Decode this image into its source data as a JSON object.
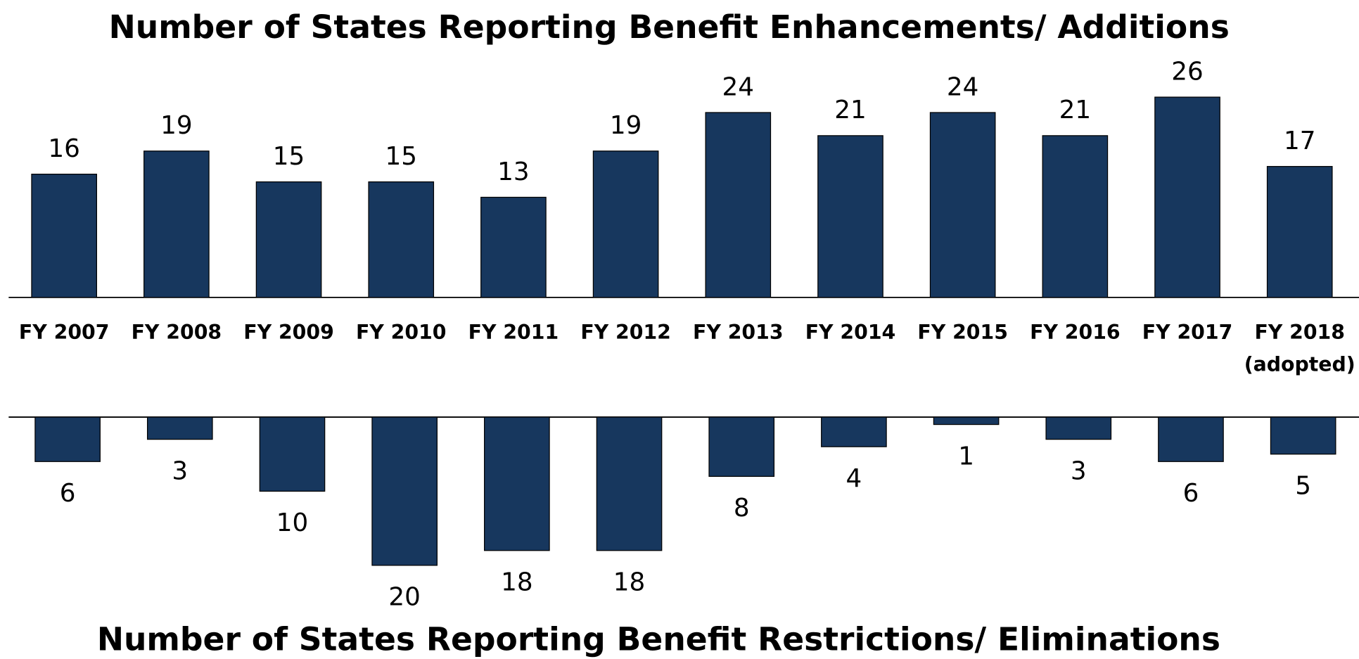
{
  "chart_data": [
    {
      "type": "bar",
      "title": "Number of States Reporting Benefit Enhancements/ Additions",
      "categories": [
        "FY 2007",
        "FY 2008",
        "FY 2009",
        "FY 2010",
        "FY 2011",
        "FY 2012",
        "FY 2013",
        "FY 2014",
        "FY 2015",
        "FY 2016",
        "FY 2017",
        "FY 2018\n(adopted)"
      ],
      "values": [
        16,
        19,
        15,
        15,
        13,
        19,
        24,
        21,
        24,
        21,
        26,
        17
      ],
      "color": "#17375e"
    },
    {
      "type": "bar-down",
      "title": "Number of States Reporting Benefit Restrictions/ Eliminations",
      "values": [
        6,
        3,
        10,
        20,
        18,
        18,
        8,
        4,
        1,
        3,
        6,
        5
      ],
      "color": "#17375e"
    }
  ]
}
